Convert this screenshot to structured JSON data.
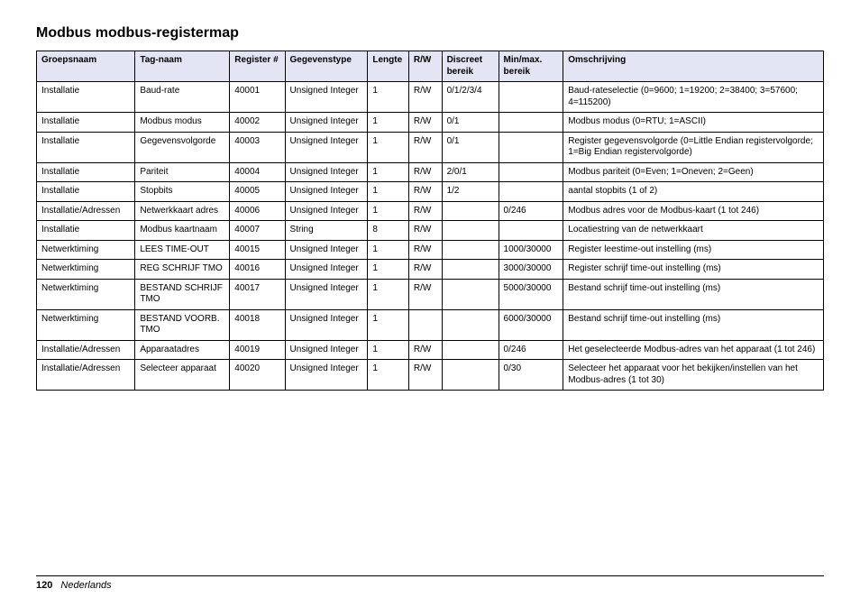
{
  "title": "Modbus modbus-registermap",
  "header_bg": "#e3e4f4",
  "border_color": "#000000",
  "font_family": "Arial",
  "columns": [
    "Groepsnaam",
    "Tag-naam",
    "Register #",
    "Gegevenstype",
    "Lengte",
    "R/W",
    "Discreet bereik",
    "Min/max. bereik",
    "Omschrijving"
  ],
  "rows": [
    [
      "Installatie",
      "Baud-rate",
      "40001",
      "Unsigned Integer",
      "1",
      "R/W",
      "0/1/2/3/4",
      "",
      "Baud-rateselectie (0=9600; 1=19200; 2=38400; 3=57600; 4=115200)"
    ],
    [
      "Installatie",
      "Modbus modus",
      "40002",
      "Unsigned Integer",
      "1",
      "R/W",
      "0/1",
      "",
      "Modbus modus (0=RTU; 1=ASCII)"
    ],
    [
      "Installatie",
      "Gegevensvolgorde",
      "40003",
      "Unsigned Integer",
      "1",
      "R/W",
      "0/1",
      "",
      "Register gegevensvolgorde (0=Little Endian registervolgorde; 1=Big Endian registervolgorde)"
    ],
    [
      "Installatie",
      "Pariteit",
      "40004",
      "Unsigned Integer",
      "1",
      "R/W",
      "2/0/1",
      "",
      "Modbus pariteit (0=Even; 1=Oneven; 2=Geen)"
    ],
    [
      "Installatie",
      "Stopbits",
      "40005",
      "Unsigned Integer",
      "1",
      "R/W",
      "1/2",
      "",
      "aantal stopbits (1 of 2)"
    ],
    [
      "Installatie/Adressen",
      "Netwerkkaart adres",
      "40006",
      "Unsigned Integer",
      "1",
      "R/W",
      "",
      "0/246",
      "Modbus adres voor de Modbus-kaart (1 tot 246)"
    ],
    [
      "Installatie",
      "Modbus kaartnaam",
      "40007",
      "String",
      "8",
      "R/W",
      "",
      "",
      "Locatiestring van de netwerkkaart"
    ],
    [
      "Netwerktiming",
      "LEES TIME-OUT",
      "40015",
      "Unsigned Integer",
      "1",
      "R/W",
      "",
      "1000/30000",
      "Register leestime-out instelling (ms)"
    ],
    [
      "Netwerktiming",
      "REG SCHRIJF TMO",
      "40016",
      "Unsigned Integer",
      "1",
      "R/W",
      "",
      "3000/30000",
      "Register schrijf time-out instelling (ms)"
    ],
    [
      "Netwerktiming",
      "BESTAND SCHRIJF TMO",
      "40017",
      "Unsigned Integer",
      "1",
      "R/W",
      "",
      "5000/30000",
      "Bestand schrijf time-out instelling (ms)"
    ],
    [
      "Netwerktiming",
      "BESTAND VOORB. TMO",
      "40018",
      "Unsigned Integer",
      "1",
      "",
      "",
      "6000/30000",
      "Bestand schrijf time-out instelling (ms)"
    ],
    [
      "Installatie/Adressen",
      "Apparaatadres",
      "40019",
      "Unsigned Integer",
      "1",
      "R/W",
      "",
      "0/246",
      "Het geselecteerde Modbus-adres van het apparaat (1 tot 246)"
    ],
    [
      "Installatie/Adressen",
      "Selecteer apparaat",
      "40020",
      "Unsigned Integer",
      "1",
      "R/W",
      "",
      "0/30",
      "Selecteer het apparaat voor het bekijken/instellen van het Modbus-adres (1 tot 30)"
    ]
  ],
  "footer": {
    "page": "120",
    "language": "Nederlands"
  }
}
